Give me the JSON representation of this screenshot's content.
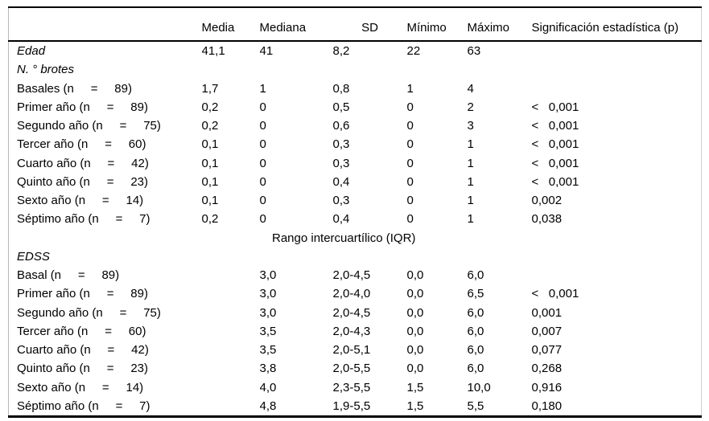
{
  "table": {
    "headers": [
      "",
      "Media",
      "Mediana",
      "SD",
      "Mínimo",
      "Máximo",
      "Significación estadística (p)"
    ],
    "rows": [
      {
        "kind": "data",
        "italic": true,
        "cells": [
          "Edad",
          "41,1",
          "41",
          "8,2",
          "22",
          "63",
          ""
        ]
      },
      {
        "kind": "data",
        "italic": true,
        "cells": [
          "N. ° brotes",
          "",
          "",
          "",
          "",
          "",
          ""
        ]
      },
      {
        "kind": "data",
        "italic": false,
        "cells": [
          "Basales (n     =     89)",
          "1,7",
          "1",
          "0,8",
          "1",
          "4",
          ""
        ]
      },
      {
        "kind": "data",
        "italic": false,
        "cells": [
          "Primer año (n     =     89)",
          "0,2",
          "0",
          "0,5",
          "0",
          "2",
          "<   0,001"
        ]
      },
      {
        "kind": "data",
        "italic": false,
        "cells": [
          "Segundo año (n     =     75)",
          "0,2",
          "0",
          "0,6",
          "0",
          "3",
          "<   0,001"
        ]
      },
      {
        "kind": "data",
        "italic": false,
        "cells": [
          "Tercer año (n     =     60)",
          "0,1",
          "0",
          "0,3",
          "0",
          "1",
          "<   0,001"
        ]
      },
      {
        "kind": "data",
        "italic": false,
        "cells": [
          "Cuarto año (n     =     42)",
          "0,1",
          "0",
          "0,3",
          "0",
          "1",
          "<   0,001"
        ]
      },
      {
        "kind": "data",
        "italic": false,
        "cells": [
          "Quinto año (n     =     23)",
          "0,1",
          "0",
          "0,4",
          "0",
          "1",
          "<   0,001"
        ]
      },
      {
        "kind": "data",
        "italic": false,
        "cells": [
          "Sexto año (n     =     14)",
          "0,1",
          "0",
          "0,3",
          "0",
          "1",
          "0,002"
        ]
      },
      {
        "kind": "data",
        "italic": false,
        "cells": [
          "Séptimo año (n     =     7)",
          "0,2",
          "0",
          "0,4",
          "0",
          "1",
          "0,038"
        ]
      },
      {
        "kind": "spanner",
        "label": "Rango intercuartílico (IQR)"
      },
      {
        "kind": "data",
        "italic": true,
        "cells": [
          "EDSS",
          "",
          "",
          "",
          "",
          "",
          ""
        ]
      },
      {
        "kind": "data",
        "italic": false,
        "cells": [
          "Basal (n     =     89)",
          "",
          "3,0",
          "2,0-4,5",
          "0,0",
          "6,0",
          ""
        ]
      },
      {
        "kind": "data",
        "italic": false,
        "cells": [
          "Primer año (n     =     89)",
          "",
          "3,0",
          "2,0-4,0",
          "0,0",
          "6,5",
          "<   0,001"
        ]
      },
      {
        "kind": "data",
        "italic": false,
        "cells": [
          "Segundo año (n     =     75)",
          "",
          "3,0",
          "2,0-4,5",
          "0,0",
          "6,0",
          "0,001"
        ]
      },
      {
        "kind": "data",
        "italic": false,
        "cells": [
          "Tercer año (n     =     60)",
          "",
          "3,5",
          "2,0-4,3",
          "0,0",
          "6,0",
          "0,007"
        ]
      },
      {
        "kind": "data",
        "italic": false,
        "cells": [
          "Cuarto año (n     =     42)",
          "",
          "3,5",
          "2,0-5,1",
          "0,0",
          "6,0",
          "0,077"
        ]
      },
      {
        "kind": "data",
        "italic": false,
        "cells": [
          "Quinto año (n     =     23)",
          "",
          "3,8",
          "2,0-5,5",
          "0,0",
          "6,0",
          "0,268"
        ]
      },
      {
        "kind": "data",
        "italic": false,
        "cells": [
          "Sexto año (n     =     14)",
          "",
          "4,0",
          "2,3-5,5",
          "1,5",
          "10,0",
          "0,916"
        ]
      },
      {
        "kind": "data",
        "italic": false,
        "cells": [
          "Séptimo año (n     =     7)",
          "",
          "4,8",
          "1,9-5,5",
          "1,5",
          "5,5",
          "0,180"
        ]
      }
    ]
  }
}
